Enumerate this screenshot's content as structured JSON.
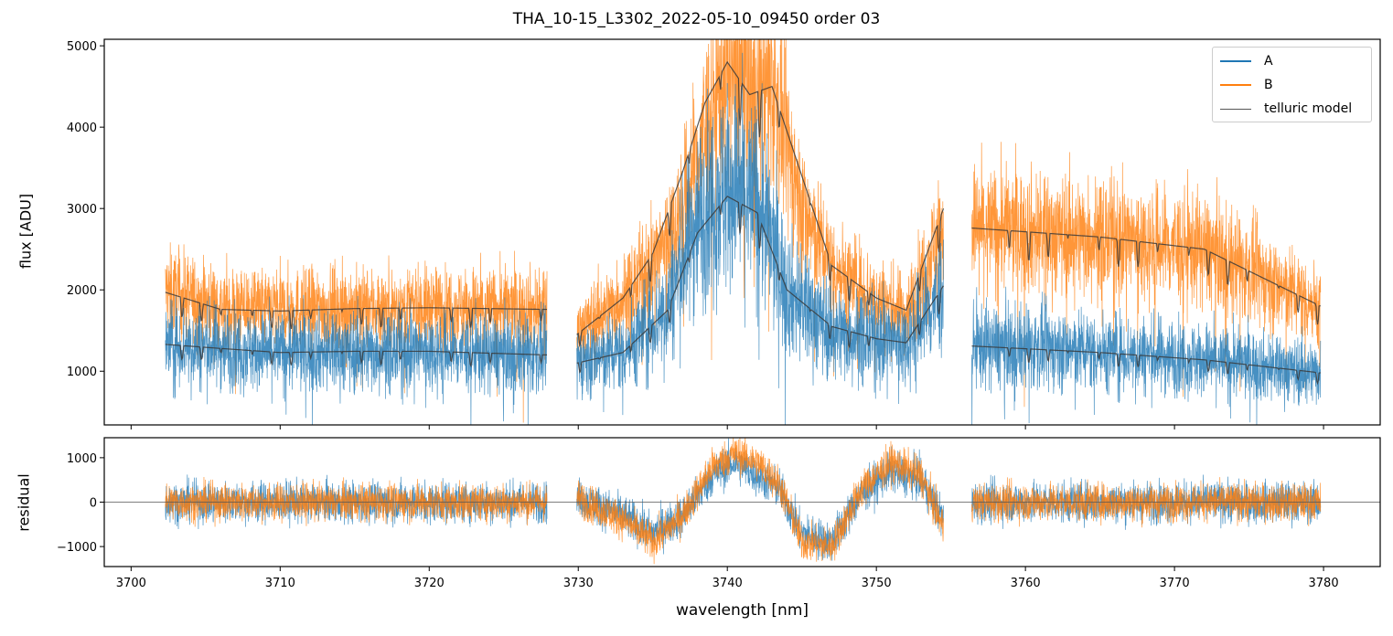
{
  "chart_data": [
    {
      "panel": "top",
      "type": "line",
      "title": "THA_10-15_L3302_2022-05-10_09450  order 03",
      "xlabel": "",
      "ylabel": "flux [ADU]",
      "xlim": [
        3698.2,
        3783.8
      ],
      "ylim": [
        340,
        5080
      ],
      "yticks": [
        1000,
        2000,
        3000,
        4000,
        5000
      ],
      "ytick_labels": [
        "1000",
        "2000",
        "3000",
        "4000",
        "5000"
      ],
      "legend_position": "top-right",
      "legend": [
        "A",
        "B",
        "telluric model"
      ],
      "colors": {
        "A": "#1f77b4",
        "B": "#ff7f0e",
        "model": "#3a3a3a"
      },
      "segments": [
        [
          3702.3,
          3727.9
        ],
        [
          3729.9,
          3754.5
        ],
        [
          3756.4,
          3779.8
        ]
      ],
      "series": [
        {
          "name": "A",
          "x": [
            3702.3,
            3706,
            3710,
            3715,
            3720,
            3727.9,
            3729.9,
            3733,
            3736,
            3738,
            3740,
            3742,
            3744,
            3747,
            3750,
            3752,
            3754.5,
            3756.4,
            3765,
            3772,
            3779.8
          ],
          "y": [
            1340,
            1290,
            1240,
            1250,
            1250,
            1200,
            1120,
            1250,
            1800,
            2900,
            3300,
            3100,
            2000,
            1500,
            1400,
            1350,
            2000,
            1320,
            1250,
            1150,
            980
          ]
        },
        {
          "name": "B",
          "x": [
            3702.3,
            3706,
            3710,
            3715,
            3720,
            3727.9,
            3729.9,
            3733,
            3735,
            3737,
            3738.5,
            3740,
            3741.5,
            3743,
            3745,
            3747,
            3750,
            3752,
            3754.5,
            3756.4,
            3765,
            3772,
            3779.8
          ],
          "y": [
            1980,
            1800,
            1760,
            1780,
            1790,
            1780,
            1500,
            1900,
            2300,
            3000,
            4000,
            4700,
            4600,
            4500,
            3000,
            2300,
            1900,
            1700,
            2800,
            2780,
            2650,
            2500,
            1800
          ]
        },
        {
          "name": "telluric model (A)",
          "x": [
            3702.3,
            3706,
            3710,
            3715,
            3720,
            3727.9,
            3729.9,
            3733,
            3736,
            3738,
            3740,
            3742,
            3744,
            3747,
            3750,
            3752,
            3754.5,
            3756.4,
            3765,
            3772,
            3779.8
          ],
          "y": [
            1330,
            1280,
            1230,
            1245,
            1245,
            1200,
            1100,
            1230,
            1750,
            2700,
            3150,
            2950,
            2000,
            1550,
            1400,
            1350,
            2050,
            1310,
            1230,
            1140,
            980
          ]
        },
        {
          "name": "telluric model (B)",
          "x": [
            3702.3,
            3706,
            3710,
            3715,
            3720,
            3727.9,
            3729.9,
            3733,
            3735,
            3737,
            3738.5,
            3740,
            3741.5,
            3743,
            3745,
            3747,
            3750,
            3752,
            3754.5,
            3756.4,
            3765,
            3772,
            3779.8
          ],
          "y": [
            1970,
            1760,
            1740,
            1770,
            1780,
            1760,
            1450,
            1900,
            2450,
            3450,
            4300,
            4800,
            4400,
            4500,
            3400,
            2300,
            1900,
            1750,
            3000,
            2760,
            2650,
            2500,
            1800
          ]
        }
      ]
    },
    {
      "panel": "bottom",
      "type": "line",
      "xlabel": "wavelength [nm]",
      "ylabel": "residual",
      "xlim": [
        3698.2,
        3783.8
      ],
      "ylim": [
        -1450,
        1450
      ],
      "yticks": [
        -1000,
        0,
        1000
      ],
      "ytick_labels": [
        "−1000",
        "0",
        "1000"
      ],
      "xticks": [
        3700,
        3710,
        3720,
        3730,
        3740,
        3750,
        3760,
        3770,
        3780
      ],
      "xtick_labels": [
        "3700",
        "3710",
        "3720",
        "3730",
        "3740",
        "3750",
        "3760",
        "3770",
        "3780"
      ],
      "zero_line": 0,
      "series": [
        {
          "name": "A residual",
          "x": [
            3702.3,
            3715,
            3727.9,
            3729.9,
            3733,
            3735,
            3737,
            3739,
            3740.5,
            3742,
            3743.5,
            3745,
            3747,
            3749,
            3751,
            3753,
            3754.5,
            3756.4,
            3768,
            3779.8
          ],
          "y": [
            0,
            0,
            0,
            100,
            -300,
            -700,
            -300,
            600,
            900,
            600,
            300,
            -700,
            -900,
            200,
            700,
            500,
            -400,
            0,
            0,
            0
          ]
        },
        {
          "name": "B residual",
          "x": [
            3702.3,
            3715,
            3727.9,
            3729.9,
            3733,
            3735,
            3737,
            3739,
            3740.5,
            3742,
            3743.5,
            3745,
            3747,
            3749,
            3751,
            3753,
            3754.5,
            3756.4,
            3768,
            3779.8
          ],
          "y": [
            0,
            0,
            0,
            100,
            -400,
            -900,
            -300,
            800,
            1100,
            900,
            400,
            -900,
            -1000,
            300,
            900,
            600,
            -600,
            0,
            0,
            0
          ]
        }
      ]
    }
  ]
}
